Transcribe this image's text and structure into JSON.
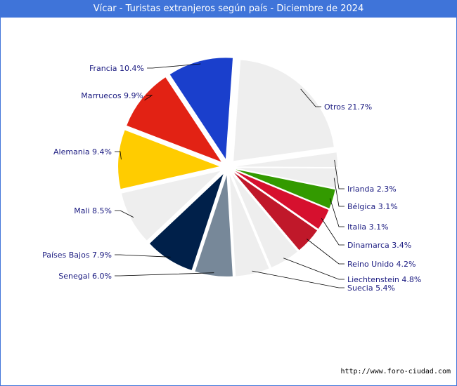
{
  "title": "Vícar - Turistas extranjeros según país - Diciembre de 2024",
  "source": "http://www.foro-ciudad.com",
  "colors": {
    "title_bg": "#3f74d9",
    "label": "#1a1a80",
    "leader": "#000000"
  },
  "chart_data": {
    "type": "pie",
    "title": "Vícar - Turistas extranjeros según país - Diciembre de 2024",
    "unit": "%",
    "slices": [
      {
        "name": "Otros",
        "value": 21.7,
        "label": "Otros 21.7%",
        "color": "#eeeeee"
      },
      {
        "name": "Irlanda",
        "value": 2.3,
        "label": "Irlanda 2.3%",
        "color": "#eeeeee"
      },
      {
        "name": "Bélgica",
        "value": 3.1,
        "label": "Bélgica 3.1%",
        "color": "#eeeeee"
      },
      {
        "name": "Italia",
        "value": 3.1,
        "label": "Italia 3.1%",
        "color": "#339a00"
      },
      {
        "name": "Dinamarca",
        "value": 3.4,
        "label": "Dinamarca 3.4%",
        "color": "#d6102e"
      },
      {
        "name": "Reino Unido",
        "value": 4.2,
        "label": "Reino Unido 4.2%",
        "color": "#c0182a"
      },
      {
        "name": "Liechtenstein",
        "value": 4.8,
        "label": "Liechtenstein 4.8%",
        "color": "#eeeeee"
      },
      {
        "name": "Suecia",
        "value": 5.4,
        "label": "Suecia 5.4%",
        "color": "#eeeeee"
      },
      {
        "name": "Senegal",
        "value": 6.0,
        "label": "Senegal 6.0%",
        "color": "#778899"
      },
      {
        "name": "Países Bajos",
        "value": 7.9,
        "label": "Países Bajos 7.9%",
        "color": "#00204a"
      },
      {
        "name": "Mali",
        "value": 8.5,
        "label": "Mali 8.5%",
        "color": "#eeeeee"
      },
      {
        "name": "Alemania",
        "value": 9.4,
        "label": "Alemania 9.4%",
        "color": "#ffcc00"
      },
      {
        "name": "Marruecos",
        "value": 9.9,
        "label": "Marruecos 9.9%",
        "color": "#e22214"
      },
      {
        "name": "Francia",
        "value": 10.4,
        "label": "Francia 10.4%",
        "color": "#1a3fcc"
      }
    ]
  }
}
